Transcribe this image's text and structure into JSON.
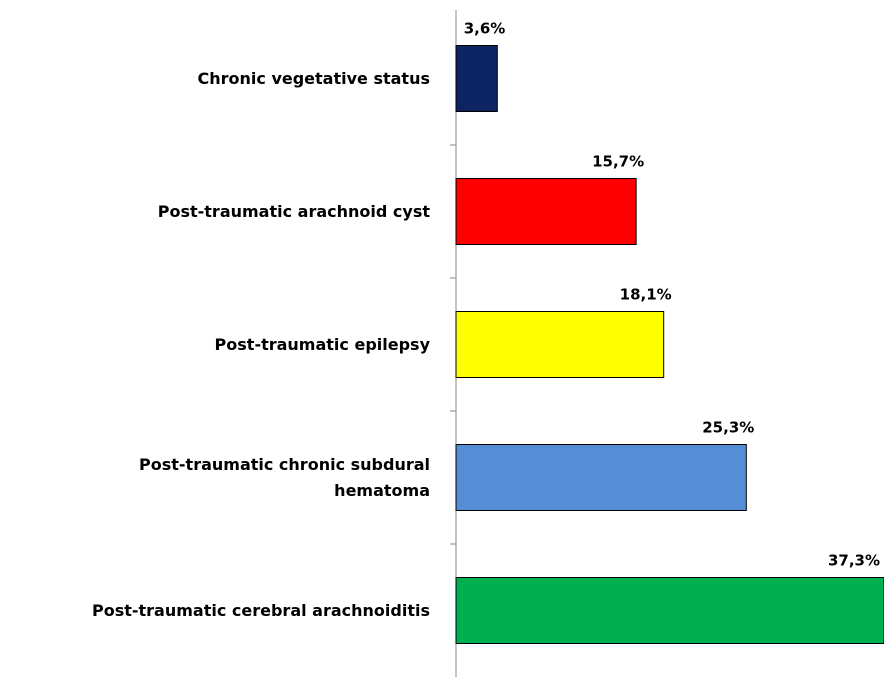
{
  "chart_data": {
    "type": "bar",
    "orientation": "horizontal",
    "categories": [
      "Chronic vegetative status",
      "Post-traumatic arachnoid cyst",
      "Post-traumatic epilepsy",
      "Post-traumatic chronic subdural hematoma",
      "Post-traumatic cerebral arachnoiditis"
    ],
    "values": [
      3.6,
      15.7,
      18.1,
      25.3,
      37.3
    ],
    "value_labels": [
      "3,6%",
      "15,7%",
      "18,1%",
      "25,3%",
      "37,3%"
    ],
    "colors": [
      "#0c2461",
      "#ff0000",
      "#ffff00",
      "#558ed5",
      "#00b050"
    ]
  }
}
